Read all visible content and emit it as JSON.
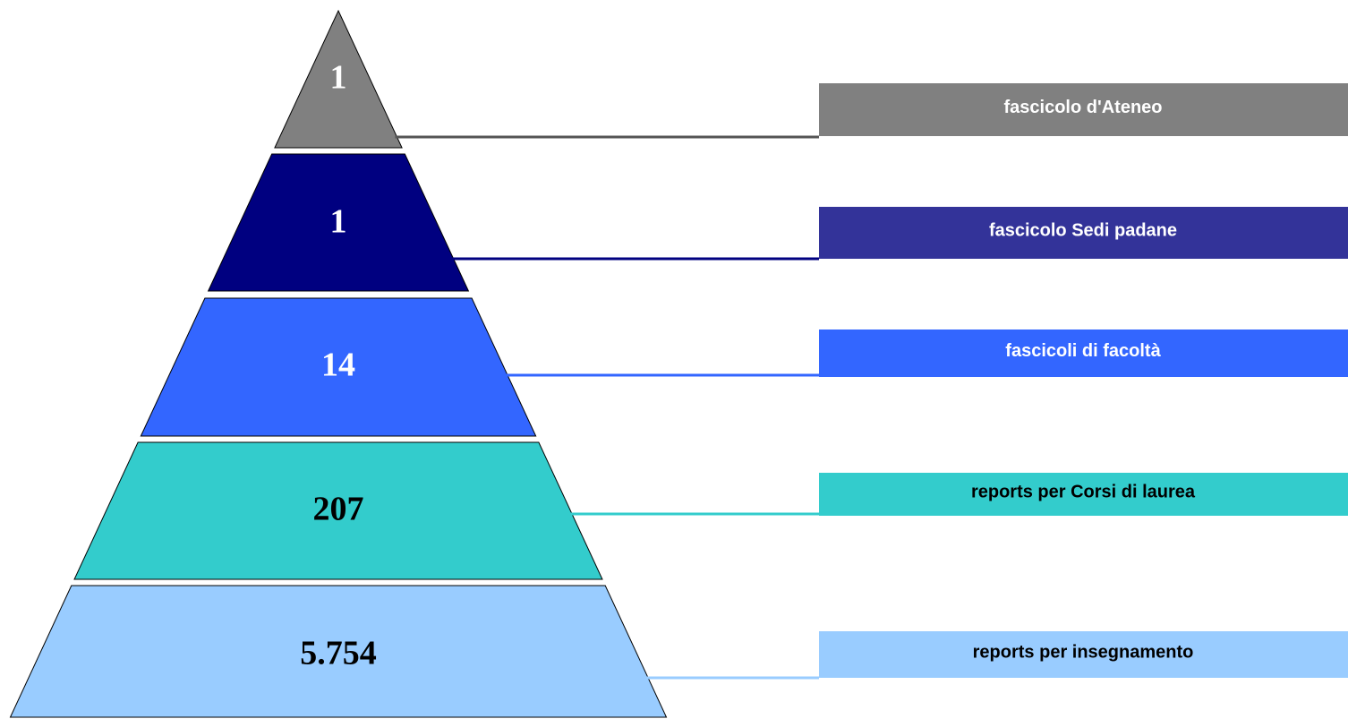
{
  "levels": [
    {
      "value": "1",
      "label": "fascicolo d'Ateneo",
      "color": "#808080",
      "box_color": "#808080"
    },
    {
      "value": "1",
      "label": "fascicolo Sedi padane",
      "color": "#000080",
      "box_color": "#333399"
    },
    {
      "value": "14",
      "label": "fascicoli di facoltà",
      "color": "#3366ff",
      "box_color": "#3366ff"
    },
    {
      "value": "207",
      "label": "reports per Corsi di laurea",
      "color": "#33cccc",
      "box_color": "#33cccc"
    },
    {
      "value": "5.754",
      "label": "reports per insegnamento",
      "color": "#99ccff",
      "box_color": "#99ccff"
    }
  ]
}
